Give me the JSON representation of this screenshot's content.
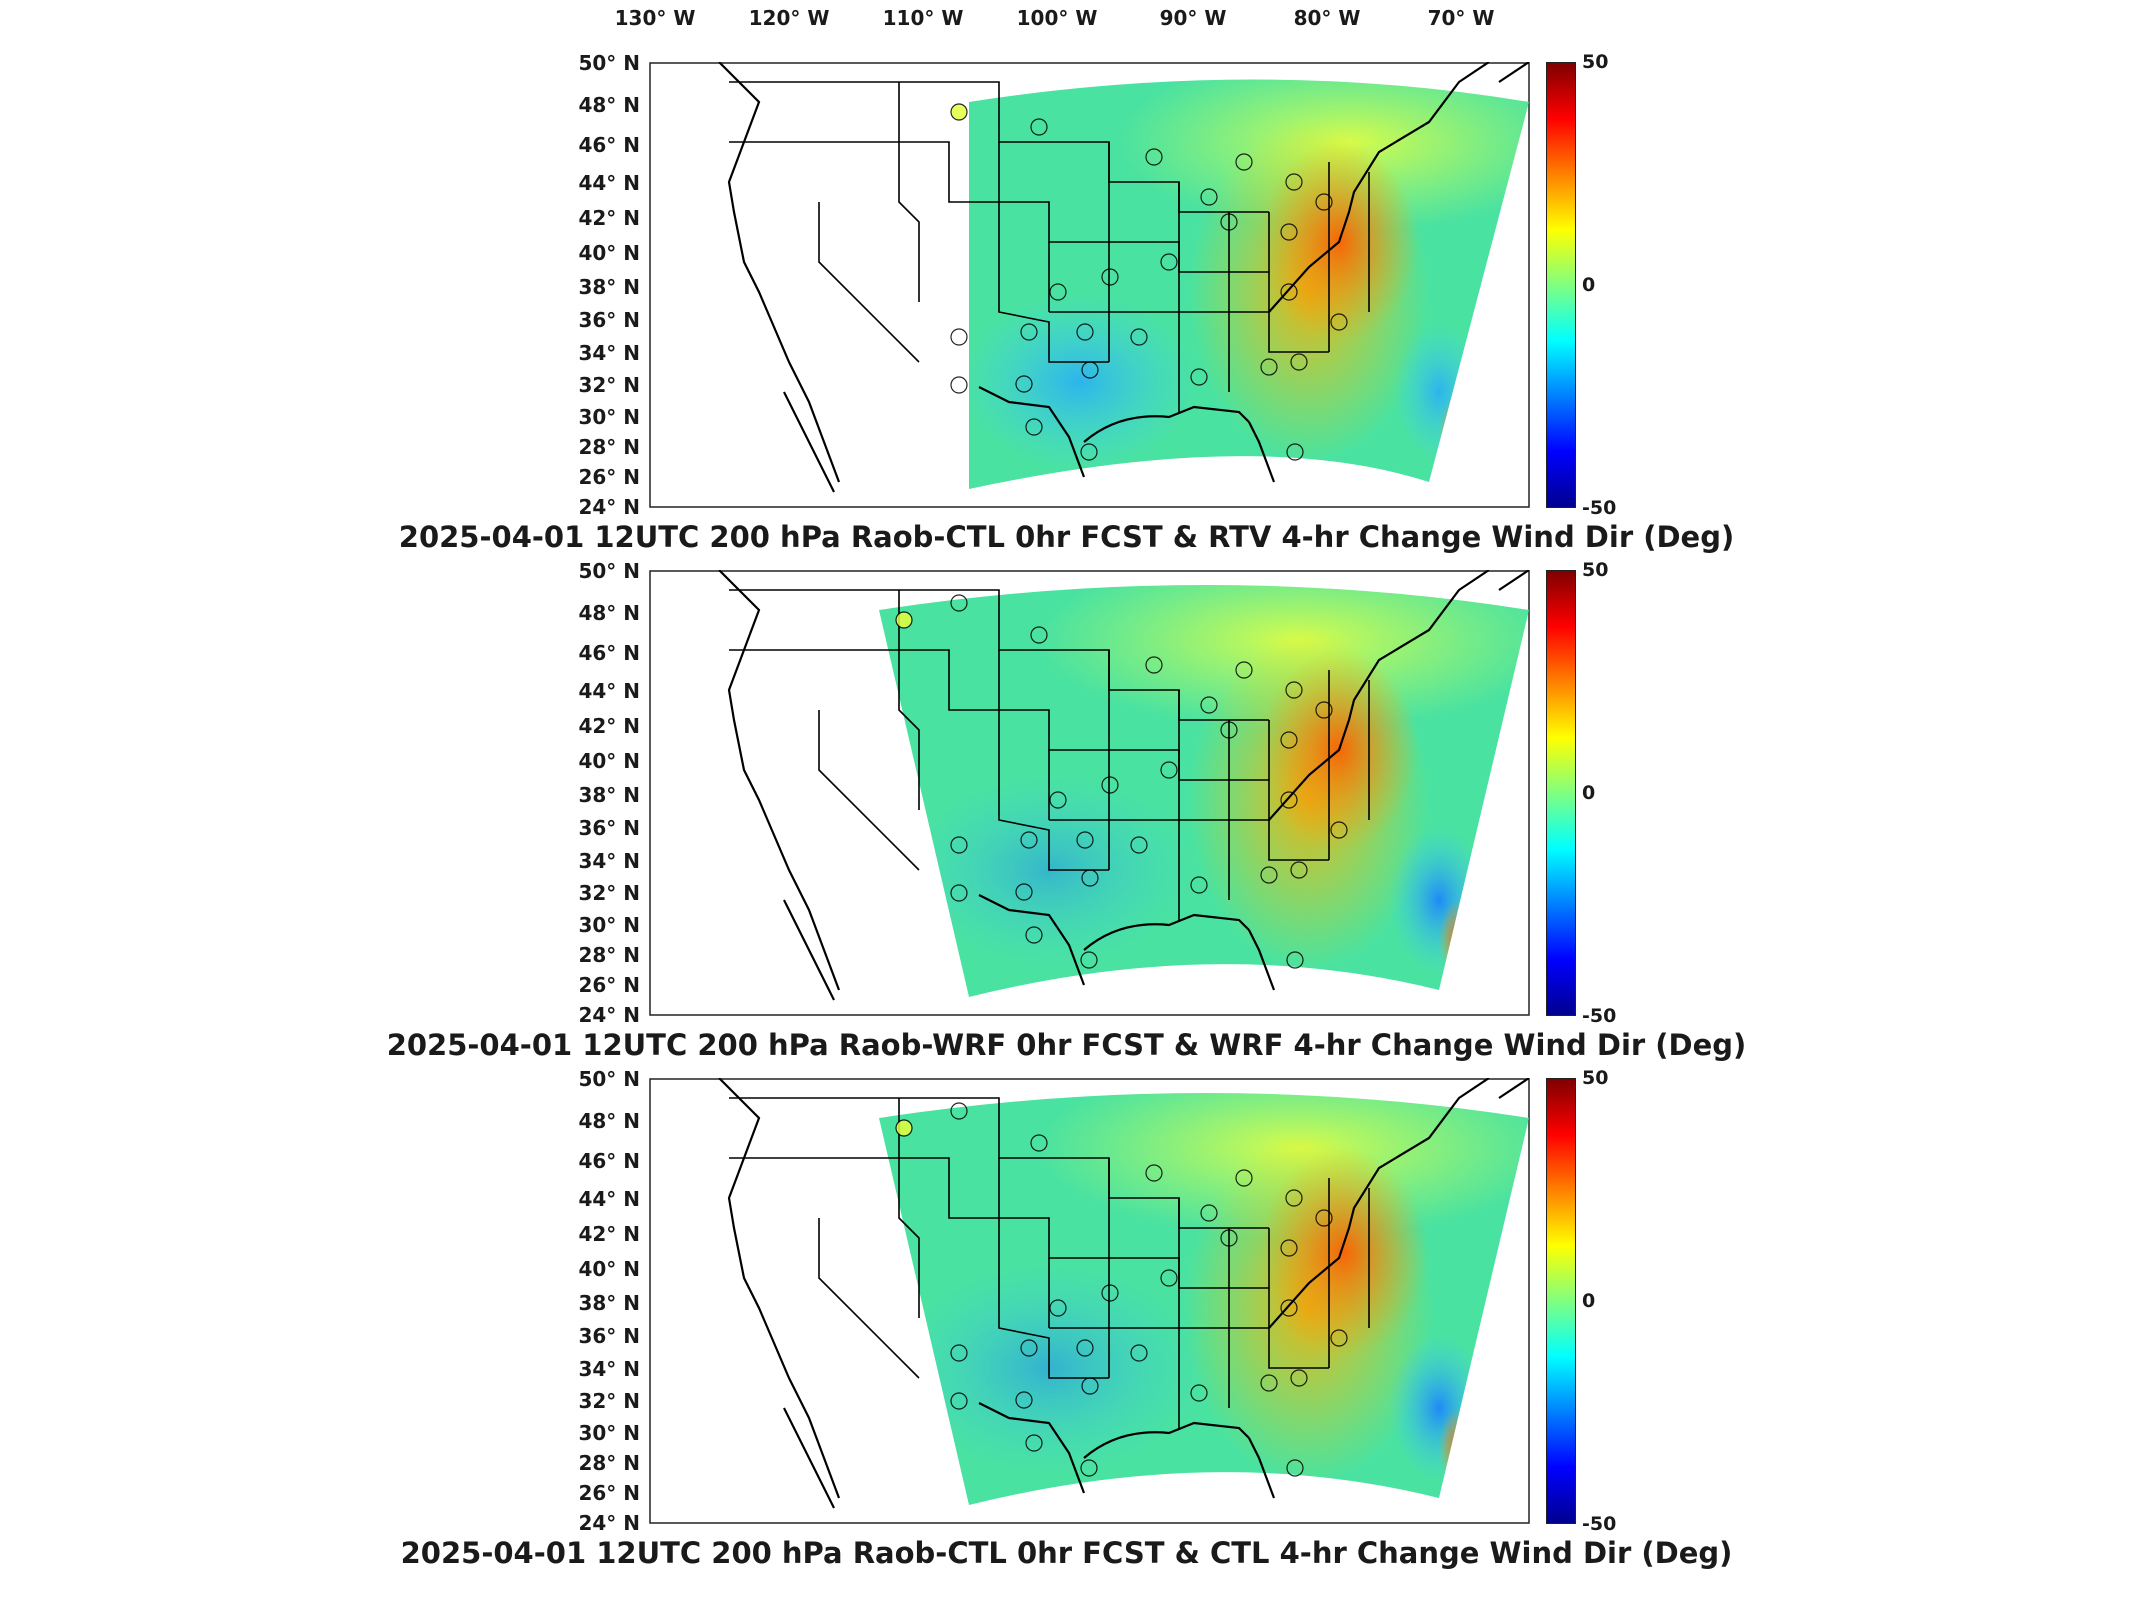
{
  "lon_labels": [
    "130° W",
    "120° W",
    "110° W",
    "100° W",
    "90° W",
    "80° W",
    "70° W"
  ],
  "lat_labels": [
    "50° N",
    "48° N",
    "46° N",
    "44° N",
    "42° N",
    "40° N",
    "38° N",
    "36° N",
    "34° N",
    "32° N",
    "30° N",
    "28° N",
    "26° N",
    "24° N"
  ],
  "colorbar": {
    "max": "50",
    "mid": "0",
    "min": "-50",
    "colormap": "jet"
  },
  "chart_data": [
    {
      "type": "heatmap",
      "title": "2025-04-01 12UTC 200 hPa Raob-CTL 0hr FCST & RTV 4-hr Change Wind Dir (Deg)",
      "clim": [
        -50,
        50
      ],
      "xlim": [
        -130,
        -65
      ],
      "ylim": [
        24,
        50
      ]
    },
    {
      "type": "heatmap",
      "title": "2025-04-01 12UTC 200 hPa Raob-WRF 0hr FCST & WRF 4-hr Change Wind Dir (Deg)",
      "clim": [
        -50,
        50
      ],
      "xlim": [
        -130,
        -65
      ],
      "ylim": [
        24,
        50
      ]
    },
    {
      "type": "heatmap",
      "title": "2025-04-01 12UTC 200 hPa Raob-CTL 0hr FCST & CTL 4-hr Change Wind Dir (Deg)",
      "clim": [
        -50,
        50
      ],
      "xlim": [
        -130,
        -65
      ],
      "ylim": [
        24,
        50
      ]
    }
  ]
}
